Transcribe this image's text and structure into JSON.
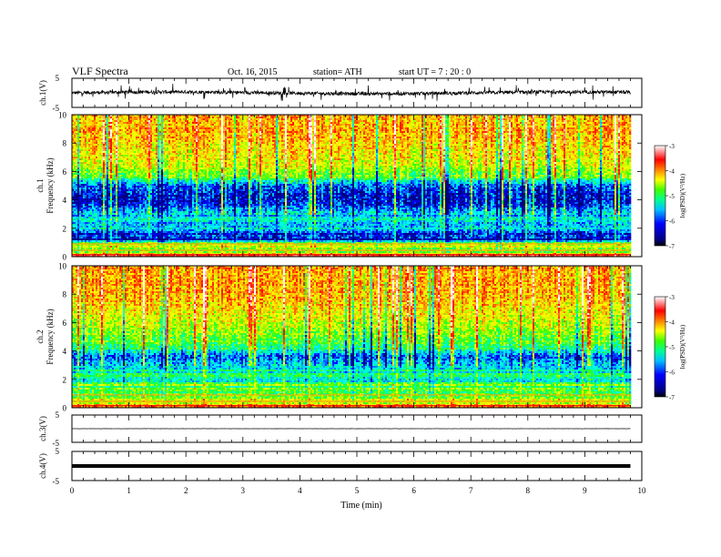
{
  "header": {
    "title": "VLF  Spectra",
    "date": "Oct. 16,  2015",
    "station": "station= ATH",
    "start": "start  UT  =   7  : 20 : 0"
  },
  "chart_data": [
    {
      "type": "line",
      "name": "ch1-waveform",
      "ylabel": "ch.1(V)",
      "ylim": [
        -5,
        5
      ],
      "yticks": [
        "5",
        "-5"
      ],
      "xlim": [
        0,
        10
      ],
      "baseline": 0,
      "noise_amplitude": 1.2
    },
    {
      "type": "heatmap",
      "name": "ch1-spectrogram",
      "ylabel_channel": "ch.1",
      "ylabel": "Frequency  (kHz)",
      "ylim": [
        0,
        10
      ],
      "yticks": [
        "0",
        "2",
        "4",
        "6",
        "8",
        "10"
      ],
      "xlim": [
        0,
        9.8
      ],
      "colorbar_label": "log(PSD)(V²/Hz)",
      "colorbar_ticks": [
        "-3",
        "-4",
        "-5",
        "-6",
        "-7"
      ],
      "clim": [
        -7,
        -3
      ],
      "band_profile": [
        {
          "f": 0.0,
          "psd": -3.6
        },
        {
          "f": 0.4,
          "psd": -5.2
        },
        {
          "f": 0.8,
          "psd": -5.0
        },
        {
          "f": 1.2,
          "psd": -6.6
        },
        {
          "f": 1.6,
          "psd": -6.4
        },
        {
          "f": 2.0,
          "psd": -6.0
        },
        {
          "f": 2.6,
          "psd": -5.9
        },
        {
          "f": 3.2,
          "psd": -6.2
        },
        {
          "f": 3.8,
          "psd": -6.8
        },
        {
          "f": 4.4,
          "psd": -6.7
        },
        {
          "f": 5.0,
          "psd": -6.5
        },
        {
          "f": 5.6,
          "psd": -5.3
        },
        {
          "f": 6.2,
          "psd": -5.0
        },
        {
          "f": 7.0,
          "psd": -4.7
        },
        {
          "f": 8.0,
          "psd": -4.5
        },
        {
          "f": 9.0,
          "psd": -4.4
        },
        {
          "f": 10.0,
          "psd": -4.4
        }
      ]
    },
    {
      "type": "heatmap",
      "name": "ch2-spectrogram",
      "ylabel_channel": "ch.2",
      "ylabel": "Frequency  (kHz)",
      "ylim": [
        0,
        10
      ],
      "yticks": [
        "0",
        "2",
        "4",
        "6",
        "8",
        "10"
      ],
      "xlim": [
        0,
        9.8
      ],
      "colorbar_label": "log(PSD)(V²/Hz)",
      "colorbar_ticks": [
        "-3",
        "-4",
        "-5",
        "-6",
        "-7"
      ],
      "clim": [
        -7,
        -3
      ],
      "band_profile": [
        {
          "f": 0.0,
          "psd": -3.8
        },
        {
          "f": 0.4,
          "psd": -5.3
        },
        {
          "f": 0.8,
          "psd": -4.9
        },
        {
          "f": 1.2,
          "psd": -5.6
        },
        {
          "f": 1.6,
          "psd": -5.4
        },
        {
          "f": 2.0,
          "psd": -5.8
        },
        {
          "f": 2.6,
          "psd": -5.9
        },
        {
          "f": 3.2,
          "psd": -6.2
        },
        {
          "f": 3.6,
          "psd": -6.5
        },
        {
          "f": 4.2,
          "psd": -5.6
        },
        {
          "f": 5.0,
          "psd": -5.2
        },
        {
          "f": 6.0,
          "psd": -4.9
        },
        {
          "f": 7.0,
          "psd": -4.6
        },
        {
          "f": 8.0,
          "psd": -4.4
        },
        {
          "f": 9.0,
          "psd": -4.3
        },
        {
          "f": 10.0,
          "psd": -4.3
        }
      ]
    },
    {
      "type": "line",
      "name": "ch3-waveform",
      "ylabel": "ch.3(V)",
      "ylim": [
        -5,
        5
      ],
      "yticks": [
        "5",
        "-5"
      ],
      "xlim": [
        0,
        10
      ],
      "baseline": 0,
      "noise_amplitude": 0.1
    },
    {
      "type": "line",
      "name": "ch4-waveform",
      "ylabel": "ch.4(V)",
      "ylim": [
        -5,
        5
      ],
      "yticks": [
        "5",
        "-5"
      ],
      "xlim": [
        0,
        10
      ],
      "baseline": 0,
      "noise_amplitude": 0.05
    }
  ],
  "x_axis": {
    "label": "Time  (min)",
    "min": 0,
    "max": 10,
    "ticks": [
      "0",
      "1",
      "2",
      "3",
      "4",
      "5",
      "6",
      "7",
      "8",
      "9",
      "10"
    ]
  },
  "colors": {
    "colormap": [
      "#000080",
      "#0000ff",
      "#00a0ff",
      "#00ffff",
      "#00ff80",
      "#40ff00",
      "#c0ff00",
      "#ffff00",
      "#ffa000",
      "#ff4000",
      "#ff0000",
      "#ff8080",
      "#ffffff"
    ]
  }
}
